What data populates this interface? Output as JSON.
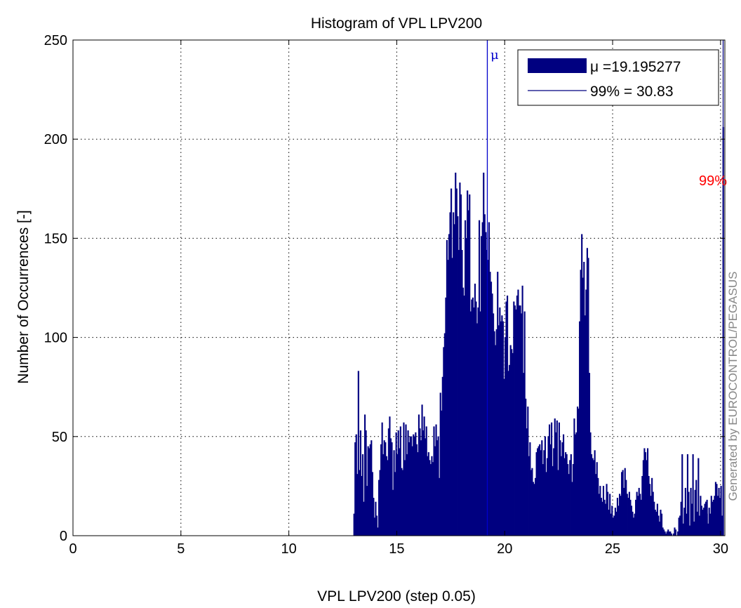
{
  "chart_data": {
    "type": "bar",
    "title": "Histogram of VPL LPV200",
    "xlabel": "VPL LPV200 (step 0.05)",
    "ylabel": "Number of Occurrences [-]",
    "xlim": [
      0,
      30.2
    ],
    "ylim": [
      0,
      250
    ],
    "xticks": [
      0,
      5,
      10,
      15,
      20,
      25,
      30
    ],
    "yticks": [
      0,
      50,
      100,
      150,
      200,
      250
    ],
    "grid": true,
    "bar_color": "#000080",
    "bin_width": 0.05,
    "bin_start": 13.0,
    "values": [
      11,
      47,
      51,
      31,
      83,
      33,
      53,
      30,
      41,
      17,
      61,
      53,
      25,
      45,
      44,
      46,
      48,
      32,
      19,
      9,
      17,
      10,
      4,
      28,
      33,
      46,
      57,
      41,
      48,
      47,
      40,
      38,
      54,
      60,
      49,
      47,
      23,
      43,
      32,
      52,
      41,
      53,
      44,
      55,
      34,
      33,
      57,
      38,
      56,
      41,
      53,
      47,
      50,
      50,
      45,
      51,
      50,
      52,
      46,
      42,
      61,
      54,
      48,
      66,
      53,
      60,
      49,
      55,
      40,
      42,
      38,
      36,
      40,
      37,
      55,
      45,
      56,
      48,
      50,
      29,
      72,
      63,
      80,
      95,
      102,
      120,
      149,
      139,
      152,
      163,
      175,
      140,
      163,
      157,
      183,
      175,
      161,
      144,
      178,
      172,
      144,
      125,
      121,
      159,
      150,
      174,
      164,
      172,
      113,
      119,
      120,
      115,
      127,
      118,
      107,
      115,
      159,
      113,
      151,
      158,
      183,
      162,
      153,
      144,
      139,
      158,
      133,
      128,
      122,
      112,
      103,
      96,
      104,
      133,
      106,
      115,
      108,
      111,
      108,
      79,
      100,
      118,
      121,
      83,
      86,
      96,
      94,
      92,
      118,
      116,
      114,
      121,
      124,
      116,
      116,
      112,
      126,
      82,
      113,
      69,
      54,
      65,
      40,
      47,
      33,
      34,
      27,
      26,
      29,
      42,
      44,
      45,
      46,
      43,
      48,
      36,
      43,
      50,
      32,
      39,
      50,
      56,
      46,
      57,
      35,
      44,
      59,
      52,
      58,
      33,
      57,
      48,
      40,
      47,
      51,
      39,
      42,
      41,
      36,
      31,
      38,
      41,
      27,
      36,
      59,
      51,
      52,
      65,
      64,
      108,
      134,
      152,
      130,
      138,
      111,
      124,
      145,
      140,
      82,
      52,
      41,
      39,
      38,
      43,
      31,
      37,
      29,
      21,
      25,
      19,
      17,
      25,
      18,
      16,
      26,
      22,
      13,
      21,
      11,
      15,
      9,
      10,
      14,
      12,
      19,
      15,
      21,
      20,
      32,
      33,
      24,
      34,
      28,
      21,
      19,
      22,
      18,
      15,
      12,
      9,
      11,
      18,
      22,
      20,
      24,
      21,
      18,
      30,
      38,
      44,
      42,
      38,
      44,
      30,
      26,
      20,
      29,
      22,
      17,
      13,
      12,
      16,
      10,
      7,
      13,
      11,
      4,
      3,
      2,
      1,
      2,
      3,
      2,
      2,
      1,
      0,
      1,
      4,
      3,
      0,
      2,
      9,
      10,
      17,
      41,
      6,
      14,
      24,
      11,
      41,
      22,
      5,
      24,
      16,
      41,
      7,
      23,
      28,
      12,
      39,
      10,
      20,
      15,
      7,
      14,
      16,
      17,
      11,
      6,
      4,
      0,
      1,
      17,
      11,
      8,
      0,
      0,
      0,
      0,
      0,
      0,
      0,
      0,
      0,
      0,
      0,
      0,
      0,
      0,
      0,
      0,
      0,
      0,
      0,
      0,
      0,
      0,
      0,
      0,
      0,
      0,
      0,
      0,
      0,
      0,
      0,
      0,
      0,
      0,
      0,
      0,
      0,
      0,
      0,
      0,
      0,
      0,
      0,
      0,
      0,
      0,
      0,
      0,
      0,
      0,
      0,
      0,
      0,
      0,
      0,
      0,
      0,
      0,
      0,
      0,
      0,
      0,
      0,
      0,
      0,
      0,
      0,
      0,
      0,
      0,
      0,
      0,
      0,
      0,
      0,
      0,
      0,
      0,
      0,
      0,
      0,
      0,
      0,
      0,
      0,
      0,
      0,
      0,
      0,
      0,
      0,
      0,
      0,
      0,
      0,
      0,
      0,
      0,
      0,
      0,
      0,
      0,
      0,
      0,
      0,
      0,
      0,
      0,
      0,
      0,
      0,
      0,
      0,
      0,
      0,
      0,
      0,
      0,
      0,
      0,
      0,
      0,
      0,
      0,
      0,
      0,
      0,
      0,
      0,
      0,
      0,
      0,
      0,
      0,
      0,
      0,
      0,
      0,
      0,
      0,
      0,
      0,
      0,
      0,
      0,
      0,
      0,
      0,
      0,
      0,
      0,
      0,
      0,
      0,
      0,
      0,
      0,
      0,
      0,
      0,
      0,
      0,
      0,
      0,
      0,
      0,
      0,
      0,
      0,
      0,
      0,
      0,
      0,
      0,
      0,
      0,
      0,
      0,
      0,
      0,
      0,
      0,
      0,
      0,
      0,
      0,
      0,
      0,
      0,
      0,
      0,
      0,
      0,
      0,
      0,
      0,
      0,
      0,
      0,
      0,
      0,
      0,
      0,
      0,
      0,
      0,
      0,
      0,
      0,
      0,
      0,
      0,
      0,
      0,
      0,
      0,
      0,
      0,
      0,
      0,
      0,
      0,
      0,
      0,
      0
    ],
    "tail_bins": [
      {
        "x": 29.0,
        "v": 4
      },
      {
        "x": 29.05,
        "v": 4
      },
      {
        "x": 29.1,
        "v": 0
      },
      {
        "x": 29.15,
        "v": 13
      },
      {
        "x": 29.2,
        "v": 10
      },
      {
        "x": 29.25,
        "v": 12
      },
      {
        "x": 29.3,
        "v": 17
      },
      {
        "x": 29.35,
        "v": 18
      },
      {
        "x": 29.4,
        "v": 5
      },
      {
        "x": 29.45,
        "v": 14
      },
      {
        "x": 29.5,
        "v": 11
      },
      {
        "x": 29.55,
        "v": 20
      },
      {
        "x": 29.6,
        "v": 9
      },
      {
        "x": 29.65,
        "v": 18
      },
      {
        "x": 29.7,
        "v": 20
      },
      {
        "x": 29.75,
        "v": 27
      },
      {
        "x": 29.8,
        "v": 26
      },
      {
        "x": 29.85,
        "v": 20
      },
      {
        "x": 29.9,
        "v": 24
      },
      {
        "x": 29.95,
        "v": 19
      },
      {
        "x": 30.0,
        "v": 25
      },
      {
        "x": 30.05,
        "v": 10
      },
      {
        "x": 30.1,
        "v": 206
      }
    ],
    "mean": 19.195277,
    "p99": 30.83,
    "mean_line_color": "#0000cc",
    "p99_line_x": 30.12,
    "mu_label": "μ",
    "p99_label": "99%",
    "p99_label_color": "#ff0000",
    "legend": {
      "position": "top-right",
      "entries": [
        {
          "kind": "patch",
          "label": "μ =19.195277"
        },
        {
          "kind": "line",
          "label": "99% = 30.83"
        }
      ]
    },
    "watermark": "Generated by EUROCONTROL/PEGASUS"
  }
}
